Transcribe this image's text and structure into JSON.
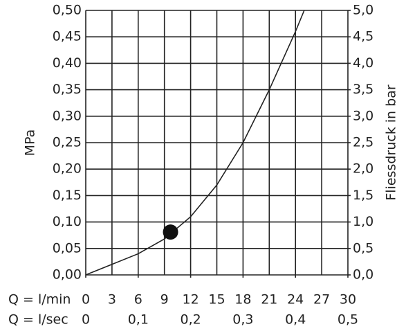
{
  "chart_data": {
    "type": "line",
    "y_label": "MPa",
    "y2_label": "Fliessdruck in bar",
    "x_label": "Q = l/min",
    "x2_label": "Q = l/sec",
    "x": [
      0,
      3,
      6,
      9,
      12,
      15,
      18,
      21,
      24,
      25
    ],
    "series": [
      {
        "color": "#222222",
        "values": [
          0,
          0.02,
          0.04,
          0.068,
          0.11,
          0.17,
          0.25,
          0.35,
          0.46,
          0.5
        ]
      }
    ],
    "highlight": {
      "x": 9.7,
      "y": 0.081,
      "color": "#111111"
    },
    "xlim": [
      0,
      30
    ],
    "xticks": [
      0,
      3,
      6,
      9,
      12,
      15,
      18,
      21,
      24,
      27,
      30
    ],
    "x2lim": [
      0,
      0.5
    ],
    "x2ticks": [
      0,
      {
        "value": 0.1,
        "label": "0,1"
      },
      {
        "value": 0.2,
        "label": "0,2"
      },
      {
        "value": 0.3,
        "label": "0,3"
      },
      {
        "value": 0.4,
        "label": "0,4"
      },
      {
        "value": 0.5,
        "label": "0,5"
      }
    ],
    "ylim": [
      0,
      0.5
    ],
    "yticks": [
      {
        "value": 0,
        "label": "0,00"
      },
      {
        "value": 0.05,
        "label": "0,05"
      },
      {
        "value": 0.1,
        "label": "0,10"
      },
      {
        "value": 0.15,
        "label": "0,15"
      },
      {
        "value": 0.2,
        "label": "0,20"
      },
      {
        "value": 0.25,
        "label": "0,25"
      },
      {
        "value": 0.3,
        "label": "0,30"
      },
      {
        "value": 0.35,
        "label": "0,35"
      },
      {
        "value": 0.4,
        "label": "0,40"
      },
      {
        "value": 0.45,
        "label": "0,45"
      },
      {
        "value": 0.5,
        "label": "0,50"
      }
    ],
    "y2lim": [
      0,
      5
    ],
    "y2ticks": [
      {
        "value": 0,
        "label": "0,0"
      },
      {
        "value": 0.5,
        "label": "0,5"
      },
      {
        "value": 1,
        "label": "1,0"
      },
      {
        "value": 1.5,
        "label": "1,5"
      },
      {
        "value": 2,
        "label": "2,0"
      },
      {
        "value": 2.5,
        "label": "2,5"
      },
      {
        "value": 3,
        "label": "3,0"
      },
      {
        "value": 3.5,
        "label": "3,5"
      },
      {
        "value": 4,
        "label": "4,0"
      },
      {
        "value": 4.5,
        "label": "4,5"
      },
      {
        "value": 5,
        "label": "5,0"
      }
    ],
    "grid": true
  }
}
